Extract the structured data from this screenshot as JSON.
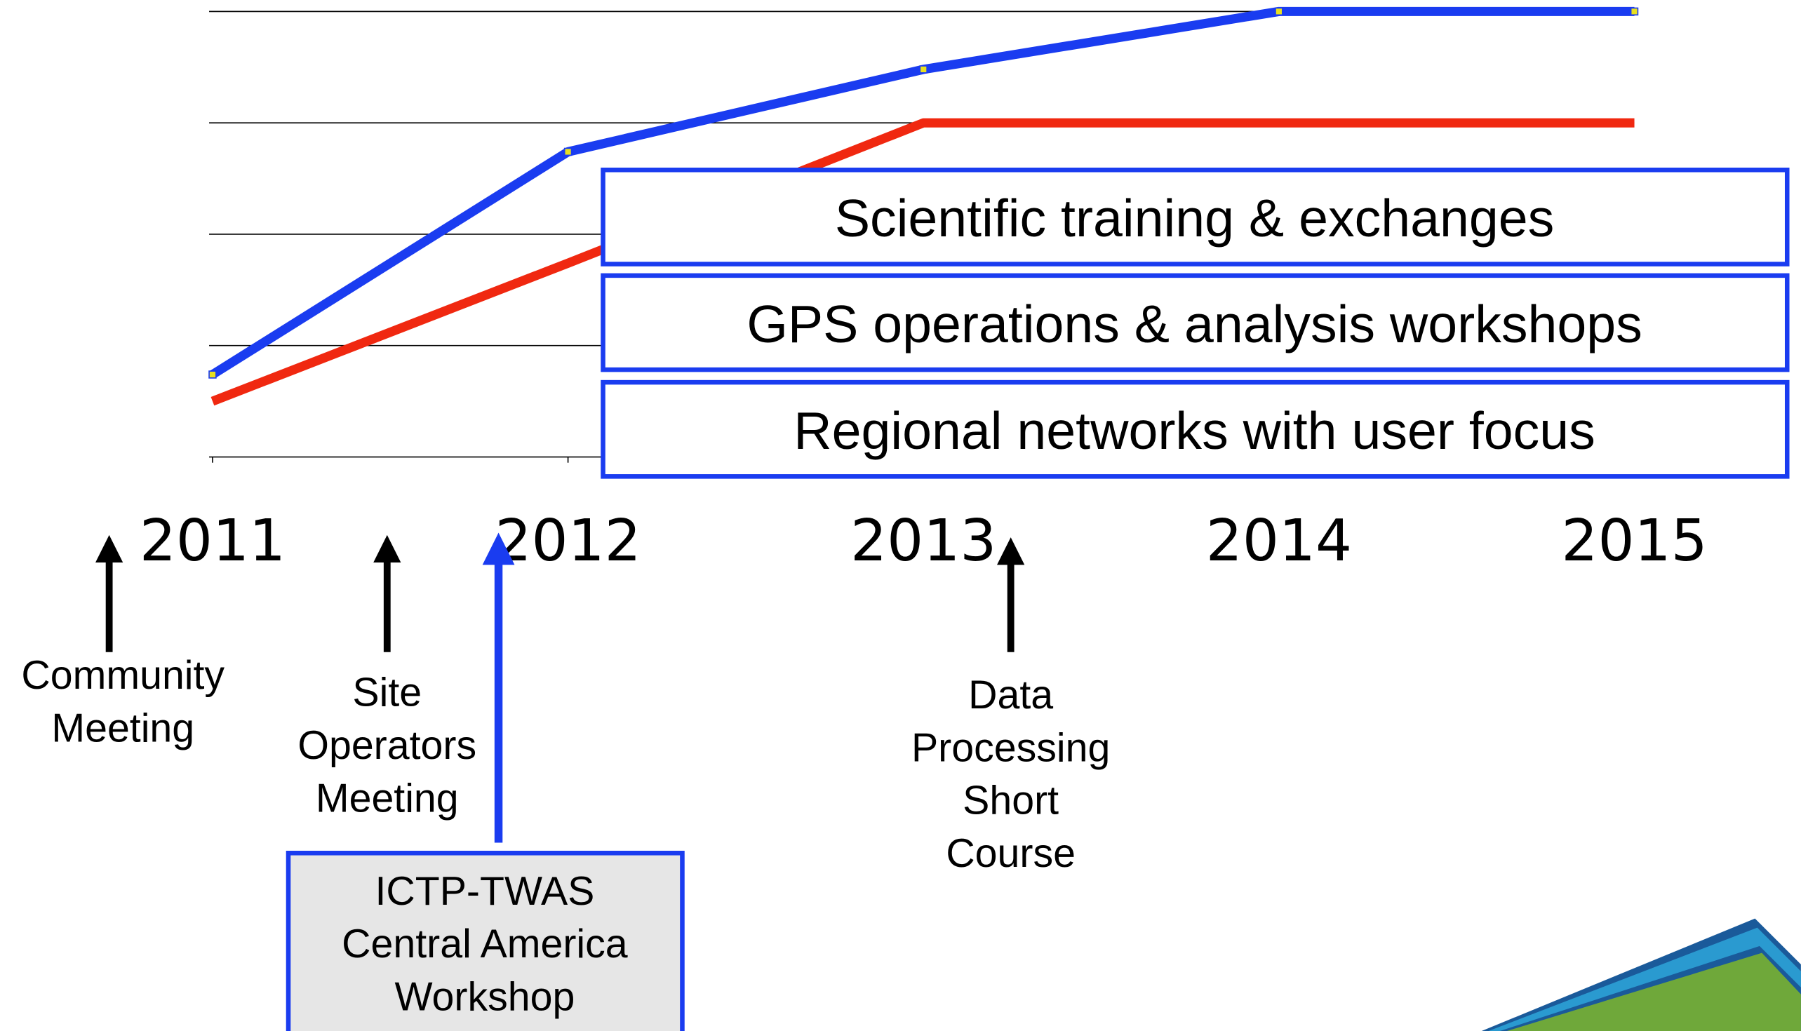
{
  "chart_data": {
    "type": "line",
    "x": [
      2011,
      2012,
      2013,
      2014,
      2015
    ],
    "xlim": [
      2011,
      2015
    ],
    "xticks": [
      2011,
      2012,
      2013,
      2014,
      2015
    ],
    "ylim": [
      0,
      4
    ],
    "yticks": [
      0,
      1,
      2,
      3,
      4
    ],
    "show_ytick_labels": false,
    "grid": true,
    "series": [
      {
        "color": "#1a3cf0",
        "markers": true,
        "values": [
          0.74,
          2.74,
          3.48,
          4,
          4
        ]
      },
      {
        "color": "#f02810",
        "markers": false,
        "values": [
          0.5,
          1.74,
          3,
          3,
          3
        ]
      }
    ],
    "boxes": [
      "Scientific training & exchanges",
      "GPS operations & analysis workshops",
      "Regional networks with user focus"
    ],
    "events": [
      [
        "Community",
        "Meeting"
      ],
      [
        "Site",
        "Operators",
        "Meeting"
      ],
      [
        "Data",
        "Processing",
        "Short",
        "Course"
      ]
    ],
    "workshop": [
      "ICTP-TWAS",
      "Central America",
      "Workshop"
    ]
  }
}
